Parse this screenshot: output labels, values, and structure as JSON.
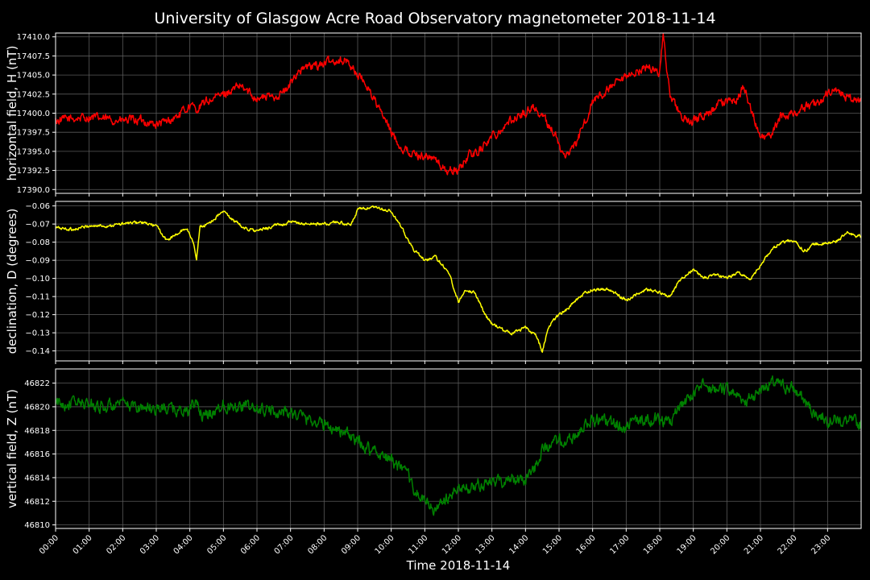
{
  "title": "University of Glasgow Acre Road Observatory magnetometer 2018-11-14",
  "x_axis": {
    "label": "Time 2018-11-14",
    "range_hours": [
      0,
      24
    ],
    "tick_labels": [
      "00:00",
      "01:00",
      "02:00",
      "03:00",
      "04:00",
      "05:00",
      "06:00",
      "07:00",
      "08:00",
      "09:00",
      "10:00",
      "11:00",
      "12:00",
      "13:00",
      "14:00",
      "15:00",
      "16:00",
      "17:00",
      "18:00",
      "19:00",
      "20:00",
      "21:00",
      "22:00",
      "23:00"
    ]
  },
  "chart_data": [
    {
      "type": "line",
      "ylabel": "horizontal field, H (nT)",
      "color": "#ff0000",
      "ylim": [
        17389.5,
        17410.5
      ],
      "yticks": [
        17390.0,
        17392.5,
        17395.0,
        17397.5,
        17400.0,
        17402.5,
        17405.0,
        17407.5,
        17410.0
      ],
      "ytick_labels": [
        "17390.0",
        "17392.5",
        "17395.0",
        "17397.5",
        "17400.0",
        "17402.5",
        "17405.0",
        "17407.5",
        "17410.0"
      ],
      "grid": true,
      "noise": 0.6,
      "x": [
        0,
        0.5,
        1,
        1.5,
        2,
        2.5,
        3,
        3.3,
        3.7,
        4,
        4.2,
        4.5,
        5,
        5.5,
        6,
        6.5,
        6.9,
        7.2,
        7.5,
        8,
        8.4,
        8.7,
        9,
        9.3,
        9.7,
        10,
        10.3,
        10.7,
        11,
        11.3,
        11.6,
        12,
        12.3,
        12.6,
        13,
        13.3,
        13.7,
        14,
        14.2,
        14.5,
        14.7,
        14.9,
        15.1,
        15.3,
        15.5,
        15.7,
        16,
        16.3,
        16.6,
        17,
        17.3,
        17.6,
        18,
        18.1,
        18.3,
        18.6,
        18.9,
        19.2,
        19.5,
        19.7,
        20,
        20.3,
        20.5,
        20.8,
        21,
        21.3,
        21.6,
        21.9,
        22.2,
        22.5,
        22.8,
        23,
        23.3,
        23.6,
        24
      ],
      "y": [
        17399,
        17399.3,
        17399.5,
        17399.2,
        17399,
        17399.1,
        17398.5,
        17398.8,
        17399.8,
        17401,
        17400.5,
        17401.5,
        17402.5,
        17403.5,
        17402,
        17402.2,
        17403,
        17405.5,
        17406,
        17406.5,
        17407,
        17406.8,
        17405,
        17403.5,
        17400,
        17397.5,
        17395.5,
        17394.5,
        17394.5,
        17394,
        17392.5,
        17392.5,
        17394.5,
        17395,
        17397,
        17398,
        17399.5,
        17400,
        17401,
        17399.5,
        17398.5,
        17397,
        17394.5,
        17395,
        17396,
        17398,
        17401.5,
        17402.5,
        17403.5,
        17404.5,
        17405.5,
        17406,
        17405.5,
        17410,
        17402.5,
        17400,
        17398.5,
        17399.5,
        17400,
        17401,
        17401.5,
        17401.8,
        17403.5,
        17399.5,
        17396.5,
        17397,
        17399.5,
        17400,
        17400.5,
        17401,
        17401.5,
        17402.5,
        17403,
        17402,
        17401.5
      ]
    },
    {
      "type": "line",
      "ylabel": "declination, D (degrees)",
      "color": "#ffff00",
      "ylim": [
        -0.1455,
        -0.0575
      ],
      "yticks": [
        -0.14,
        -0.13,
        -0.12,
        -0.11,
        -0.1,
        -0.09,
        -0.08,
        -0.07,
        -0.06
      ],
      "ytick_labels": [
        "−0.14",
        "−0.13",
        "−0.12",
        "−0.11",
        "−0.10",
        "−0.09",
        "−0.08",
        "−0.07",
        "−0.06"
      ],
      "grid": true,
      "noise": 0.0009,
      "x": [
        0,
        0.5,
        1,
        1.5,
        2,
        2.5,
        3,
        3.3,
        3.6,
        3.9,
        4.1,
        4.2,
        4.3,
        4.6,
        5,
        5.3,
        5.6,
        6,
        6.5,
        7,
        7.5,
        8,
        8.5,
        8.8,
        9,
        9.5,
        10,
        10.3,
        10.7,
        11,
        11.3,
        11.7,
        12,
        12.2,
        12.5,
        12.8,
        13,
        13.3,
        13.6,
        14,
        14.3,
        14.5,
        14.7,
        15,
        15.3,
        15.6,
        16,
        16.5,
        17,
        17.3,
        17.6,
        18,
        18.3,
        18.6,
        19,
        19.3,
        19.6,
        20,
        20.3,
        20.7,
        21,
        21.3,
        21.6,
        22,
        22.3,
        22.6,
        23,
        23.3,
        23.6,
        24
      ],
      "y": [
        -0.072,
        -0.073,
        -0.071,
        -0.071,
        -0.07,
        -0.069,
        -0.071,
        -0.079,
        -0.076,
        -0.072,
        -0.08,
        -0.089,
        -0.072,
        -0.069,
        -0.063,
        -0.068,
        -0.072,
        -0.074,
        -0.071,
        -0.069,
        -0.07,
        -0.07,
        -0.069,
        -0.071,
        -0.062,
        -0.061,
        -0.063,
        -0.072,
        -0.085,
        -0.09,
        -0.088,
        -0.096,
        -0.113,
        -0.106,
        -0.108,
        -0.12,
        -0.125,
        -0.128,
        -0.13,
        -0.127,
        -0.131,
        -0.14,
        -0.126,
        -0.12,
        -0.116,
        -0.11,
        -0.106,
        -0.106,
        -0.112,
        -0.109,
        -0.106,
        -0.108,
        -0.11,
        -0.101,
        -0.095,
        -0.1,
        -0.098,
        -0.1,
        -0.097,
        -0.1,
        -0.093,
        -0.085,
        -0.08,
        -0.079,
        -0.085,
        -0.081,
        -0.081,
        -0.079,
        -0.075,
        -0.077
      ]
    },
    {
      "type": "line",
      "ylabel": "vertical field, Z (nT)",
      "color": "#008000",
      "ylim": [
        46809.7,
        46823.2
      ],
      "yticks": [
        46810,
        46812,
        46814,
        46816,
        46818,
        46820,
        46822
      ],
      "ytick_labels": [
        "46810",
        "46812",
        "46814",
        "46816",
        "46818",
        "46820",
        "46822"
      ],
      "grid": true,
      "noise": 0.55,
      "x": [
        0,
        0.5,
        1,
        1.5,
        2,
        2.5,
        3,
        3.5,
        4,
        4.2,
        4.4,
        5,
        5.5,
        6,
        6.5,
        7,
        7.5,
        8,
        8.5,
        9,
        9.3,
        9.7,
        10,
        10.5,
        10.8,
        11,
        11.3,
        11.6,
        12,
        12.5,
        13,
        13.5,
        14,
        14.3,
        14.5,
        15,
        15.3,
        15.6,
        16,
        16.5,
        17,
        17.5,
        18,
        18.3,
        18.6,
        19,
        19.3,
        19.6,
        20,
        20.3,
        20.6,
        21,
        21.3,
        21.6,
        22,
        22.3,
        22.6,
        23,
        23.5,
        24
      ],
      "y": [
        46820.2,
        46820.4,
        46820.2,
        46820,
        46820.1,
        46820,
        46819.9,
        46819.8,
        46819.6,
        46820.5,
        46819,
        46820.2,
        46820.1,
        46819.8,
        46819.6,
        46819.5,
        46819,
        46818.5,
        46818,
        46817,
        46816.5,
        46816,
        46815.5,
        46814,
        46812.5,
        46812,
        46811.2,
        46812,
        46813,
        46813.3,
        46813.6,
        46813.8,
        46814,
        46815,
        46816.5,
        46817,
        46817,
        46818,
        46819,
        46818.5,
        46818.5,
        46818.8,
        46819,
        46818.5,
        46820,
        46821,
        46821.8,
        46821.5,
        46821.5,
        46821,
        46820.5,
        46821.5,
        46822,
        46821.8,
        46821.5,
        46820.5,
        46819.5,
        46819,
        46818.8,
        46818.5
      ]
    }
  ]
}
